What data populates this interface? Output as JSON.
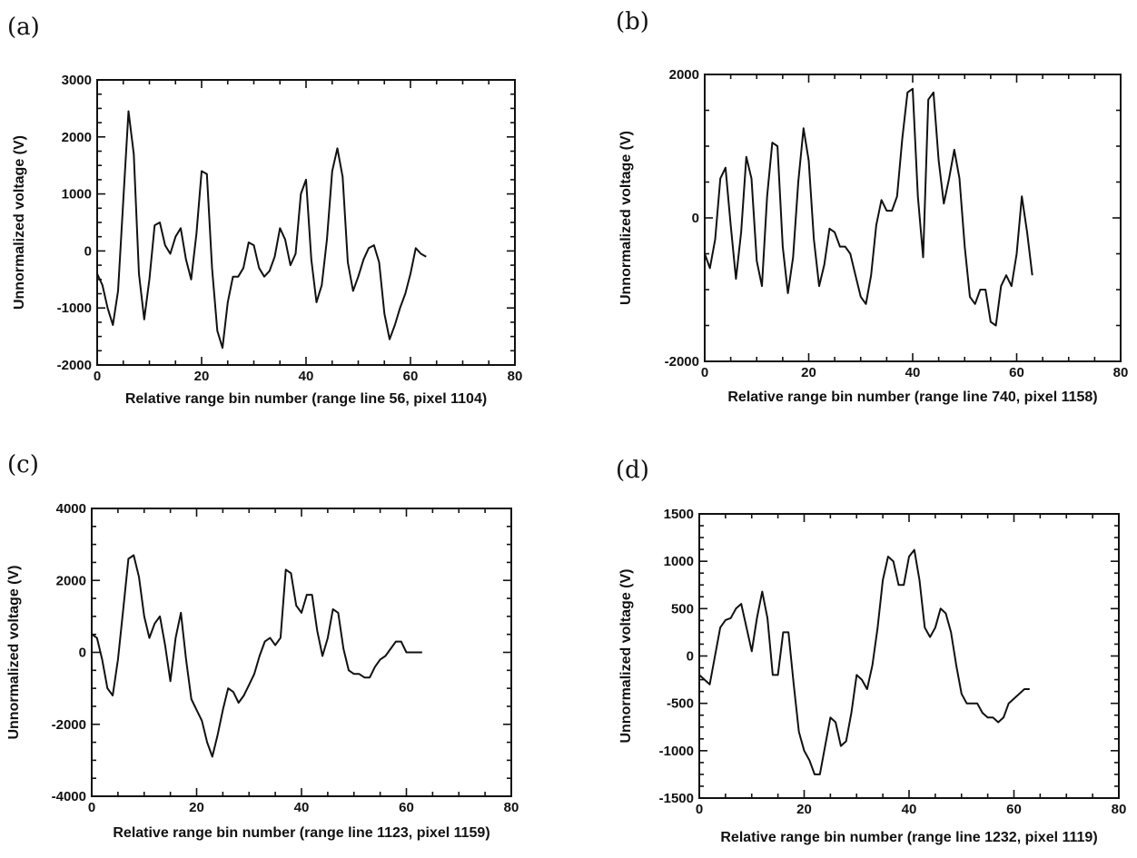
{
  "colors": {
    "ink": "#111111",
    "background": "#ffffff"
  },
  "chart_data": [
    {
      "panel": "(a)",
      "type": "line",
      "xlabel": "Relative range bin number (range line 56, pixel 1104)",
      "ylabel": "Unnormalized voltage (V)",
      "xlim": [
        0,
        80
      ],
      "ylim": [
        -2000,
        3000
      ],
      "xticks": [
        0,
        20,
        40,
        60,
        80
      ],
      "yticks": [
        -2000,
        -1000,
        0,
        1000,
        2000,
        3000
      ],
      "grid": false,
      "series": [
        {
          "x": [
            0,
            1,
            2,
            3,
            4,
            5,
            6,
            7,
            8,
            9,
            10,
            11,
            12,
            13,
            14,
            15,
            16,
            17,
            18,
            19,
            20,
            21,
            22,
            23,
            24,
            25,
            26,
            27,
            28,
            29,
            30,
            31,
            32,
            33,
            34,
            35,
            36,
            37,
            38,
            39,
            40,
            41,
            42,
            43,
            44,
            45,
            46,
            47,
            48,
            49,
            50,
            51,
            52,
            53,
            54,
            55,
            56,
            57,
            58,
            59,
            60,
            61,
            62,
            63
          ],
          "y": [
            -400,
            -600,
            -1000,
            -1300,
            -700,
            900,
            2450,
            1700,
            -400,
            -1200,
            -500,
            450,
            500,
            100,
            -50,
            250,
            400,
            -150,
            -500,
            300,
            1400,
            1350,
            -300,
            -1400,
            -1700,
            -900,
            -450,
            -450,
            -300,
            150,
            100,
            -300,
            -450,
            -350,
            -100,
            400,
            200,
            -250,
            -50,
            1000,
            1250,
            -150,
            -900,
            -600,
            200,
            1400,
            1800,
            1300,
            -200,
            -700,
            -450,
            -150,
            50,
            100,
            -200,
            -1100,
            -1550,
            -1300,
            -1000,
            -750,
            -400,
            50,
            -50,
            -100
          ]
        }
      ]
    },
    {
      "panel": "(b)",
      "type": "line",
      "xlabel": "Relative range bin number (range line 740, pixel 1158)",
      "ylabel": "Unnormalized voltage (V)",
      "xlim": [
        0,
        80
      ],
      "ylim": [
        -2000,
        2000
      ],
      "xticks": [
        0,
        20,
        40,
        60,
        80
      ],
      "yticks": [
        -2000,
        0,
        2000
      ],
      "grid": false,
      "series": [
        {
          "x": [
            0,
            1,
            2,
            3,
            4,
            5,
            6,
            7,
            8,
            9,
            10,
            11,
            12,
            13,
            14,
            15,
            16,
            17,
            18,
            19,
            20,
            21,
            22,
            23,
            24,
            25,
            26,
            27,
            28,
            29,
            30,
            31,
            32,
            33,
            34,
            35,
            36,
            37,
            38,
            39,
            40,
            41,
            42,
            43,
            44,
            45,
            46,
            47,
            48,
            49,
            50,
            51,
            52,
            53,
            54,
            55,
            56,
            57,
            58,
            59,
            60,
            61,
            62,
            63
          ],
          "y": [
            -500,
            -700,
            -300,
            550,
            700,
            -100,
            -850,
            -200,
            850,
            550,
            -600,
            -950,
            300,
            1050,
            1000,
            -400,
            -1050,
            -550,
            500,
            1250,
            800,
            -300,
            -950,
            -650,
            -150,
            -200,
            -400,
            -400,
            -500,
            -800,
            -1100,
            -1200,
            -800,
            -100,
            250,
            100,
            100,
            300,
            1100,
            1750,
            1800,
            300,
            -550,
            1650,
            1750,
            800,
            200,
            550,
            950,
            550,
            -400,
            -1100,
            -1200,
            -1000,
            -1000,
            -1450,
            -1500,
            -950,
            -800,
            -950,
            -500,
            300,
            -200,
            -800
          ]
        }
      ]
    },
    {
      "panel": "(c)",
      "type": "line",
      "xlabel": "Relative range bin number (range line 1123, pixel 1159)",
      "ylabel": "Unnormalized voltage (V)",
      "xlim": [
        0,
        80
      ],
      "ylim": [
        -4000,
        4000
      ],
      "xticks": [
        0,
        20,
        40,
        60,
        80
      ],
      "yticks": [
        -4000,
        -2000,
        0,
        2000,
        4000
      ],
      "grid": false,
      "series": [
        {
          "x": [
            0,
            1,
            2,
            3,
            4,
            5,
            6,
            7,
            8,
            9,
            10,
            11,
            12,
            13,
            14,
            15,
            16,
            17,
            18,
            19,
            20,
            21,
            22,
            23,
            24,
            25,
            26,
            27,
            28,
            29,
            30,
            31,
            32,
            33,
            34,
            35,
            36,
            37,
            38,
            39,
            40,
            41,
            42,
            43,
            44,
            45,
            46,
            47,
            48,
            49,
            50,
            51,
            52,
            53,
            54,
            55,
            56,
            57,
            58,
            59,
            60,
            61,
            62,
            63
          ],
          "y": [
            500,
            400,
            -200,
            -1000,
            -1200,
            -200,
            1200,
            2600,
            2700,
            2100,
            1000,
            400,
            800,
            1000,
            200,
            -800,
            400,
            1100,
            -200,
            -1300,
            -1600,
            -1900,
            -2500,
            -2900,
            -2300,
            -1600,
            -1000,
            -1100,
            -1400,
            -1200,
            -900,
            -600,
            -100,
            300,
            400,
            200,
            400,
            2300,
            2200,
            1300,
            1100,
            1600,
            1600,
            600,
            -100,
            400,
            1200,
            1100,
            100,
            -500,
            -600,
            -600,
            -700,
            -700,
            -400,
            -200,
            -100,
            100,
            300,
            300,
            0,
            0,
            0,
            0
          ]
        }
      ]
    },
    {
      "panel": "(d)",
      "type": "line",
      "xlabel": "Relative range bin number (range line 1232, pixel 1119)",
      "ylabel": "Unnormalized voltage (V)",
      "xlim": [
        0,
        80
      ],
      "ylim": [
        -1500,
        1500
      ],
      "xticks": [
        0,
        20,
        40,
        60,
        80
      ],
      "yticks": [
        -1500,
        -1000,
        -500,
        0,
        500,
        1000,
        1500
      ],
      "grid": false,
      "series": [
        {
          "x": [
            0,
            1,
            2,
            3,
            4,
            5,
            6,
            7,
            8,
            9,
            10,
            11,
            12,
            13,
            14,
            15,
            16,
            17,
            18,
            19,
            20,
            21,
            22,
            23,
            24,
            25,
            26,
            27,
            28,
            29,
            30,
            31,
            32,
            33,
            34,
            35,
            36,
            37,
            38,
            39,
            40,
            41,
            42,
            43,
            44,
            45,
            46,
            47,
            48,
            49,
            50,
            51,
            52,
            53,
            54,
            55,
            56,
            57,
            58,
            59,
            60,
            61,
            62,
            63
          ],
          "y": [
            -200,
            -250,
            -300,
            0,
            300,
            380,
            400,
            500,
            550,
            300,
            50,
            400,
            680,
            400,
            -200,
            -200,
            250,
            250,
            -300,
            -800,
            -1000,
            -1100,
            -1250,
            -1250,
            -950,
            -650,
            -700,
            -950,
            -900,
            -600,
            -200,
            -250,
            -350,
            -100,
            300,
            800,
            1050,
            1000,
            750,
            750,
            1050,
            1120,
            800,
            300,
            200,
            300,
            500,
            450,
            250,
            -100,
            -400,
            -500,
            -500,
            -500,
            -600,
            -650,
            -650,
            -700,
            -650,
            -500,
            -450,
            -400,
            -350,
            -350
          ]
        }
      ]
    }
  ]
}
